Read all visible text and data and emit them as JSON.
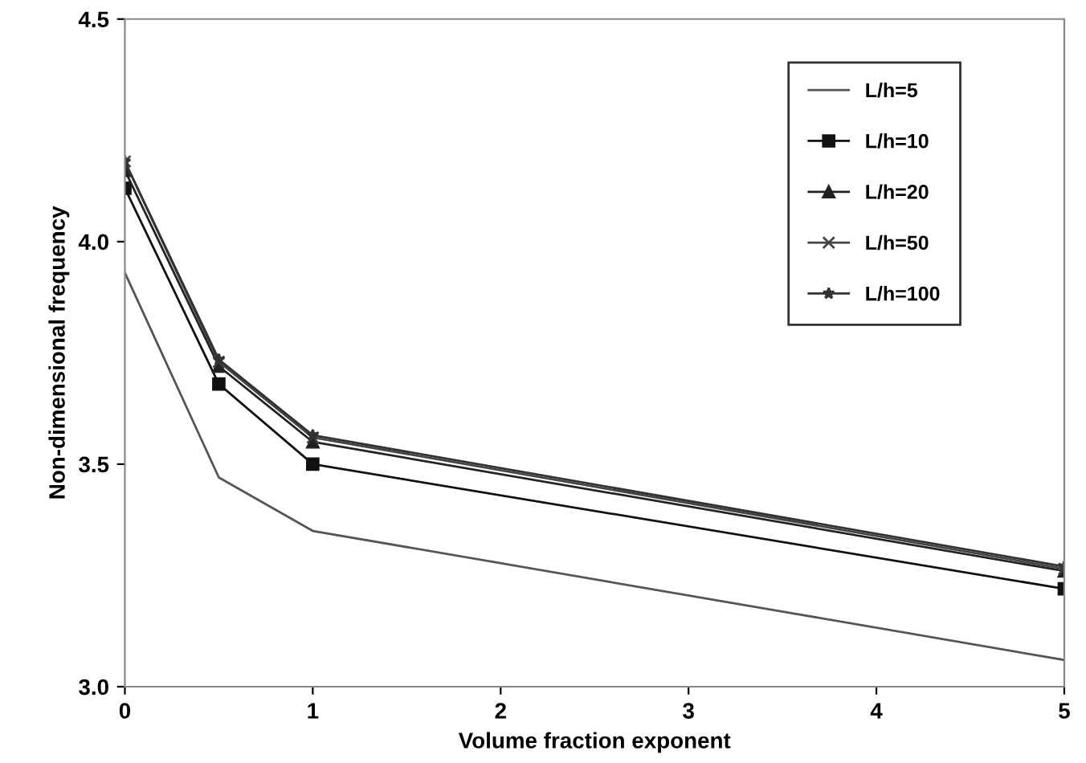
{
  "chart_data": {
    "type": "line",
    "xlabel": "Volume fraction exponent",
    "ylabel": "Non-dimensional frequency",
    "x": [
      0,
      0.5,
      1,
      5
    ],
    "xlim": [
      0,
      5
    ],
    "xticks": [
      0,
      1,
      2,
      3,
      4,
      5
    ],
    "ylim": [
      3.0,
      4.5
    ],
    "yticks": [
      {
        "value": 3.0,
        "label": "3.0"
      },
      {
        "value": 3.5,
        "label": "3.5"
      },
      {
        "value": 4.0,
        "label": "4.0"
      },
      {
        "value": 4.5,
        "label": "4.5"
      }
    ],
    "grid": false,
    "legend": "top right",
    "series": [
      {
        "name": "L/h=5",
        "color": "#555555",
        "marker": "none",
        "values": [
          3.93,
          3.47,
          3.35,
          3.06
        ]
      },
      {
        "name": "L/h=10",
        "color": "#111111",
        "marker": "square",
        "values": [
          4.12,
          3.68,
          3.5,
          3.22
        ]
      },
      {
        "name": "L/h=20",
        "color": "#222222",
        "marker": "triangle",
        "values": [
          4.16,
          3.72,
          3.55,
          3.26
        ]
      },
      {
        "name": "L/h=50",
        "color": "#444444",
        "marker": "cross",
        "values": [
          4.18,
          3.73,
          3.56,
          3.265
        ]
      },
      {
        "name": "L/h=100",
        "color": "#333333",
        "marker": "star",
        "values": [
          4.18,
          3.735,
          3.565,
          3.27
        ]
      }
    ]
  }
}
